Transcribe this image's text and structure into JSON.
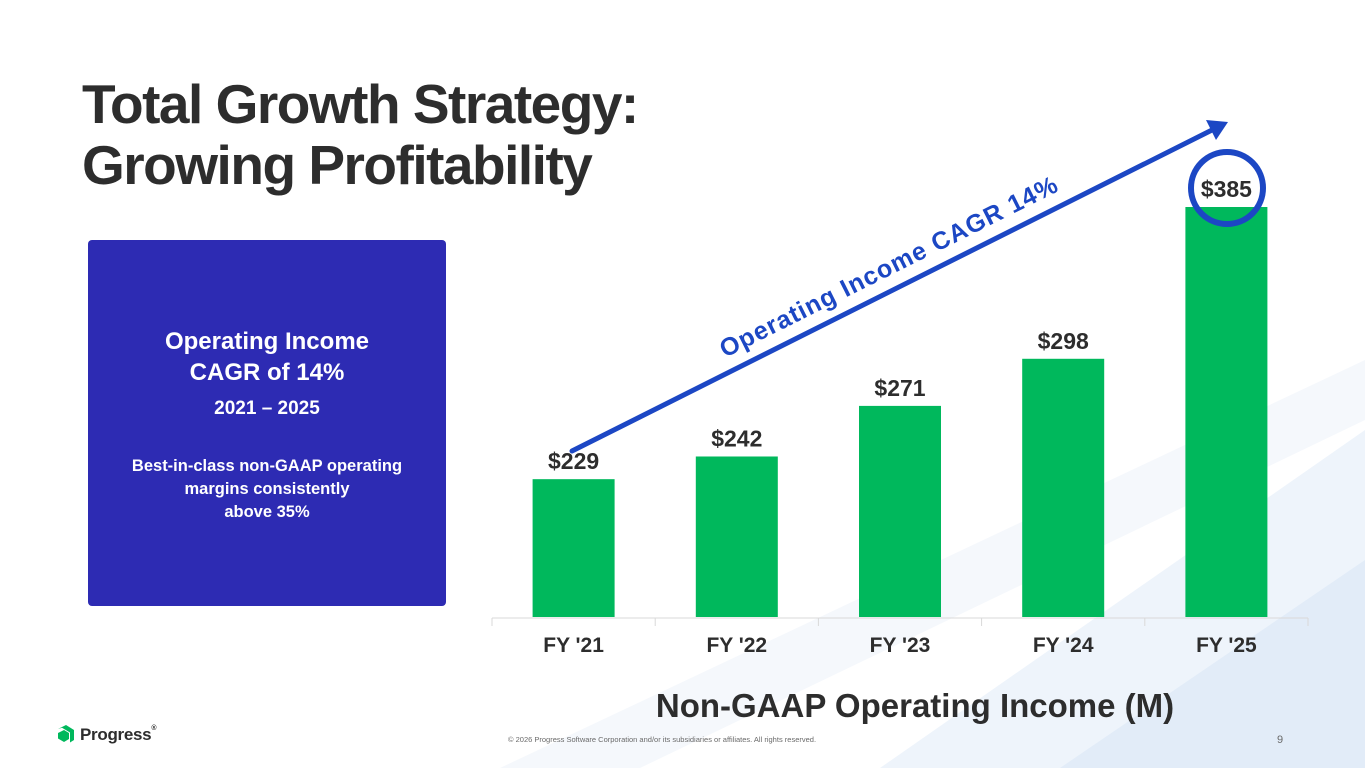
{
  "slide": {
    "title_line1": "Total Growth Strategy:",
    "title_line2": "Growing Profitability"
  },
  "info_box": {
    "headline_line1": "Operating Income",
    "headline_line2": "CAGR of 14%",
    "years": "2021 – 2025",
    "desc_line1": "Best-in-class non-GAAP operating",
    "desc_line2": "margins consistently",
    "desc_line3": "above 35%",
    "color": "#2d2bb3"
  },
  "chart_data": {
    "type": "bar",
    "title": "Non-GAAP Operating Income (M)",
    "categories": [
      "FY '21",
      "FY '22",
      "FY '23",
      "FY '24",
      "FY '25"
    ],
    "values": [
      229,
      242,
      271,
      298,
      385
    ],
    "value_labels": [
      "$229",
      "$242",
      "$271",
      "$298",
      "$385"
    ],
    "ylim": [
      150,
      400
    ],
    "xlabel": "",
    "ylabel": "",
    "grid": false,
    "bar_color": "#00b85c",
    "highlight_category": "FY '25",
    "highlight_color": "#1c47c4",
    "annotation": "Operating Income CAGR 14%"
  },
  "footer": {
    "logo_text": "Progress",
    "logo_reg": "®",
    "copyright": "© 2026 Progress Software Corporation and/or its subsidiaries or affiliates. All rights reserved.",
    "page_number": "9"
  }
}
